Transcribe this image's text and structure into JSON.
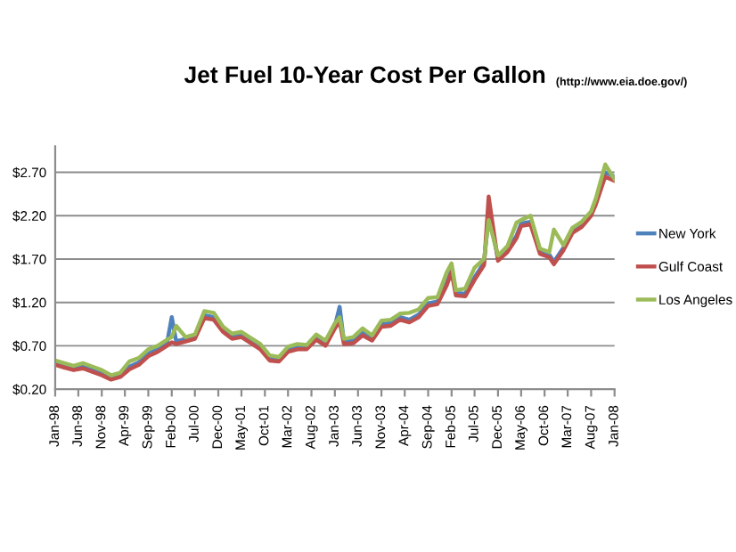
{
  "chart_data": {
    "type": "line",
    "title": "Jet Fuel 10-Year Cost Per Gallon",
    "subtitle": "(http://www.eia.doe.gov/)",
    "x": [
      "1998-01",
      "1998-03",
      "1998-05",
      "1998-07",
      "1998-09",
      "1998-11",
      "1999-01",
      "1999-03",
      "1999-05",
      "1999-07",
      "1999-09",
      "1999-11",
      "2000-01",
      "2000-02",
      "2000-03",
      "2000-05",
      "2000-07",
      "2000-09",
      "2000-11",
      "2001-01",
      "2001-03",
      "2001-05",
      "2001-07",
      "2001-09",
      "2001-11",
      "2002-01",
      "2002-03",
      "2002-05",
      "2002-07",
      "2002-09",
      "2002-11",
      "2003-01",
      "2003-02",
      "2003-03",
      "2003-05",
      "2003-07",
      "2003-09",
      "2003-11",
      "2004-01",
      "2004-03",
      "2004-05",
      "2004-07",
      "2004-09",
      "2004-11",
      "2005-01",
      "2005-02",
      "2005-03",
      "2005-05",
      "2005-07",
      "2005-09",
      "2005-10",
      "2005-12",
      "2006-02",
      "2006-04",
      "2006-05",
      "2006-07",
      "2006-09",
      "2006-11",
      "2006-12",
      "2007-02",
      "2007-04",
      "2007-06",
      "2007-08",
      "2007-09",
      "2007-11",
      "2008-01"
    ],
    "series": [
      {
        "name": "New York",
        "color": "#4f81bd",
        "values": [
          0.51,
          0.48,
          0.45,
          0.47,
          0.43,
          0.39,
          0.34,
          0.37,
          0.46,
          0.51,
          0.61,
          0.66,
          0.73,
          1.03,
          0.75,
          0.78,
          0.81,
          1.05,
          1.03,
          0.89,
          0.81,
          0.83,
          0.76,
          0.69,
          0.56,
          0.55,
          0.66,
          0.69,
          0.69,
          0.8,
          0.73,
          0.93,
          1.15,
          0.75,
          0.76,
          0.85,
          0.79,
          0.95,
          0.96,
          1.03,
          1.0,
          1.06,
          1.19,
          1.21,
          1.43,
          1.58,
          1.31,
          1.3,
          1.49,
          1.66,
          2.21,
          1.71,
          1.81,
          1.97,
          2.11,
          2.13,
          1.79,
          1.75,
          1.67,
          1.83,
          2.03,
          2.1,
          2.23,
          2.36,
          2.7,
          2.65
        ]
      },
      {
        "name": "Gulf Coast",
        "color": "#c0504d",
        "values": [
          0.48,
          0.45,
          0.42,
          0.44,
          0.4,
          0.36,
          0.31,
          0.34,
          0.43,
          0.48,
          0.58,
          0.63,
          0.7,
          0.74,
          0.72,
          0.75,
          0.78,
          1.02,
          1.0,
          0.86,
          0.78,
          0.8,
          0.73,
          0.66,
          0.53,
          0.52,
          0.63,
          0.66,
          0.66,
          0.77,
          0.7,
          0.9,
          0.98,
          0.72,
          0.73,
          0.82,
          0.76,
          0.92,
          0.93,
          1.0,
          0.97,
          1.03,
          1.16,
          1.18,
          1.4,
          1.55,
          1.28,
          1.27,
          1.46,
          1.63,
          2.42,
          1.68,
          1.78,
          1.94,
          2.08,
          2.1,
          1.76,
          1.72,
          1.64,
          1.8,
          2.0,
          2.07,
          2.2,
          2.33,
          2.65,
          2.6
        ]
      },
      {
        "name": "Los Angeles",
        "color": "#9bbb59",
        "values": [
          0.53,
          0.5,
          0.47,
          0.5,
          0.46,
          0.42,
          0.36,
          0.39,
          0.52,
          0.56,
          0.66,
          0.7,
          0.77,
          0.8,
          0.93,
          0.8,
          0.83,
          1.1,
          1.08,
          0.92,
          0.84,
          0.86,
          0.79,
          0.72,
          0.59,
          0.57,
          0.69,
          0.72,
          0.71,
          0.83,
          0.76,
          0.96,
          1.03,
          0.78,
          0.8,
          0.9,
          0.82,
          0.99,
          1.0,
          1.07,
          1.08,
          1.12,
          1.25,
          1.26,
          1.55,
          1.65,
          1.34,
          1.36,
          1.6,
          1.7,
          2.15,
          1.74,
          1.85,
          2.12,
          2.15,
          2.2,
          1.82,
          1.78,
          2.04,
          1.86,
          2.06,
          2.13,
          2.25,
          2.4,
          2.79,
          2.62
        ]
      }
    ],
    "xlim": [
      "1998-01",
      "2008-01"
    ],
    "xticks": [
      {
        "value": "1998-01",
        "label": "Jan-98"
      },
      {
        "value": "1998-06",
        "label": "Jun-98"
      },
      {
        "value": "1998-11",
        "label": "Nov-98"
      },
      {
        "value": "1999-04",
        "label": "Apr-99"
      },
      {
        "value": "1999-09",
        "label": "Sep-99"
      },
      {
        "value": "2000-02",
        "label": "Feb-00"
      },
      {
        "value": "2000-07",
        "label": "Jul-00"
      },
      {
        "value": "2000-12",
        "label": "Dec-00"
      },
      {
        "value": "2001-05",
        "label": "May-01"
      },
      {
        "value": "2001-10",
        "label": "Oct-01"
      },
      {
        "value": "2002-03",
        "label": "Mar-02"
      },
      {
        "value": "2002-08",
        "label": "Aug-02"
      },
      {
        "value": "2003-01",
        "label": "Jan-03"
      },
      {
        "value": "2003-06",
        "label": "Jun-03"
      },
      {
        "value": "2003-11",
        "label": "Nov-03"
      },
      {
        "value": "2004-04",
        "label": "Apr-04"
      },
      {
        "value": "2004-09",
        "label": "Sep-04"
      },
      {
        "value": "2005-02",
        "label": "Feb-05"
      },
      {
        "value": "2005-07",
        "label": "Jul-05"
      },
      {
        "value": "2005-12",
        "label": "Dec-05"
      },
      {
        "value": "2006-05",
        "label": "May-06"
      },
      {
        "value": "2006-10",
        "label": "Oct-06"
      },
      {
        "value": "2007-03",
        "label": "Mar-07"
      },
      {
        "value": "2007-08",
        "label": "Aug-07"
      },
      {
        "value": "2008-01",
        "label": "Jan-08"
      }
    ],
    "ylim": [
      0.2,
      3.0
    ],
    "yticks": [
      {
        "value": 0.2,
        "label": "$0.20"
      },
      {
        "value": 0.7,
        "label": "$0.70"
      },
      {
        "value": 1.2,
        "label": "$1.20"
      },
      {
        "value": 1.7,
        "label": "$1.70"
      },
      {
        "value": 2.2,
        "label": "$2.20"
      },
      {
        "value": 2.7,
        "label": "$2.70"
      }
    ],
    "grid": "y",
    "legend": "right",
    "marker": "none",
    "line_style": "solid"
  }
}
